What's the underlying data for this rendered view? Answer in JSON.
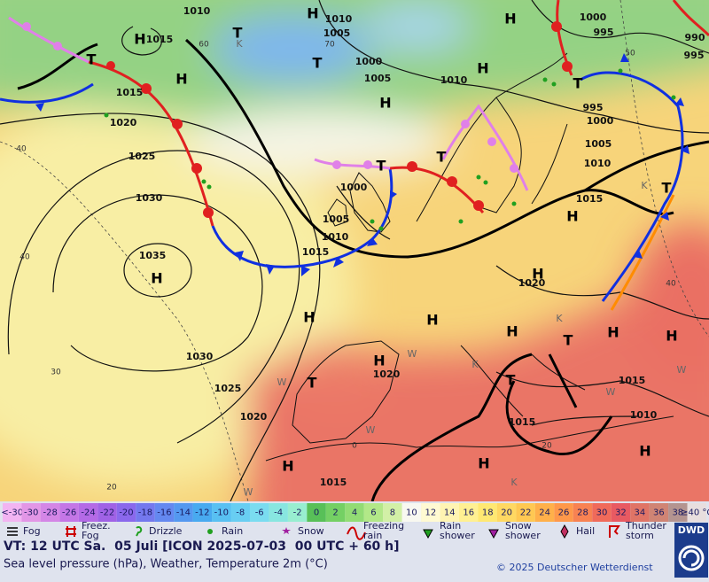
{
  "map": {
    "isobar_labels": [
      1010,
      1010,
      1005,
      1000,
      1005,
      1010,
      1015,
      1015,
      1020,
      1025,
      1030,
      1035,
      1000,
      1005,
      1010,
      1015,
      1000,
      995,
      990,
      995,
      995,
      1000,
      1005,
      1010,
      1015,
      1020,
      1030,
      1025,
      1020,
      1020,
      1015,
      1010,
      1015,
      1015
    ],
    "temperature_labels": [
      60,
      70,
      50,
      40,
      40,
      30,
      20,
      0,
      20,
      40
    ],
    "pressure_centers": [
      "H",
      "H",
      "T",
      "T",
      "H",
      "H",
      "H",
      "H",
      "T",
      "T",
      "T",
      "H",
      "T",
      "T",
      "H",
      "H",
      "H",
      "H",
      "T",
      "H",
      "H",
      "H",
      "H",
      "T",
      "T",
      "H",
      "H",
      "H"
    ],
    "air_mass_marks": [
      "K",
      "K",
      "K",
      "K",
      "W",
      "W",
      "W",
      "W",
      "K",
      "W",
      "W"
    ]
  },
  "legend": {
    "scale_low_label": "<-30",
    "scale_low_color": "#f2b4f2",
    "scale_values": [
      -30,
      -28,
      -26,
      -24,
      -22,
      -20,
      -18,
      -16,
      -14,
      -12,
      -10,
      -8,
      -6,
      -4,
      -2,
      0,
      2,
      4,
      6,
      8,
      10,
      12,
      14,
      16,
      18,
      20,
      22,
      24,
      26,
      28,
      30,
      32,
      34,
      36,
      38
    ],
    "scale_colors": [
      "#e296e6",
      "#d486e6",
      "#c476e6",
      "#b46ae6",
      "#a062e6",
      "#8a68ec",
      "#7478ee",
      "#6488f0",
      "#5498f0",
      "#48aaf0",
      "#58c0f2",
      "#68cef2",
      "#7adcf0",
      "#88e6e0",
      "#98eed0",
      "#58c058",
      "#74d064",
      "#92dc74",
      "#b2e888",
      "#d2f0a6",
      "#f8f8f0",
      "#fffad2",
      "#fff4b2",
      "#fff092",
      "#ffe872",
      "#ffd862",
      "#ffc852",
      "#ffb04a",
      "#ff984a",
      "#f88252",
      "#f06a5a",
      "#e85a62",
      "#e07466",
      "#d08474",
      "#b49490"
    ],
    "scale_high_label": "≥40 °C",
    "scale_high_color": "#e8dede",
    "symbols": [
      [
        "Fog"
      ],
      [
        "Freez.",
        "Fog"
      ],
      [
        "Drizzle"
      ],
      [
        "Rain"
      ],
      [
        "Snow"
      ],
      [
        "Freezing",
        "rain"
      ],
      [
        "Rain",
        "shower"
      ],
      [
        "Snow",
        "shower"
      ],
      [
        "Hail"
      ],
      [
        "Thunder",
        "storm"
      ]
    ]
  },
  "footer": {
    "valid_time": "VT: 12 UTC Sa.  05 Juli [ICON 2025-07-03  00 UTC + 60 h]",
    "description": "Sea level pressure (hPa), Weather, Temperature 2m (°C)",
    "copyright": "© 2025 Deutscher Wetterdienst",
    "logo": "DWD"
  }
}
